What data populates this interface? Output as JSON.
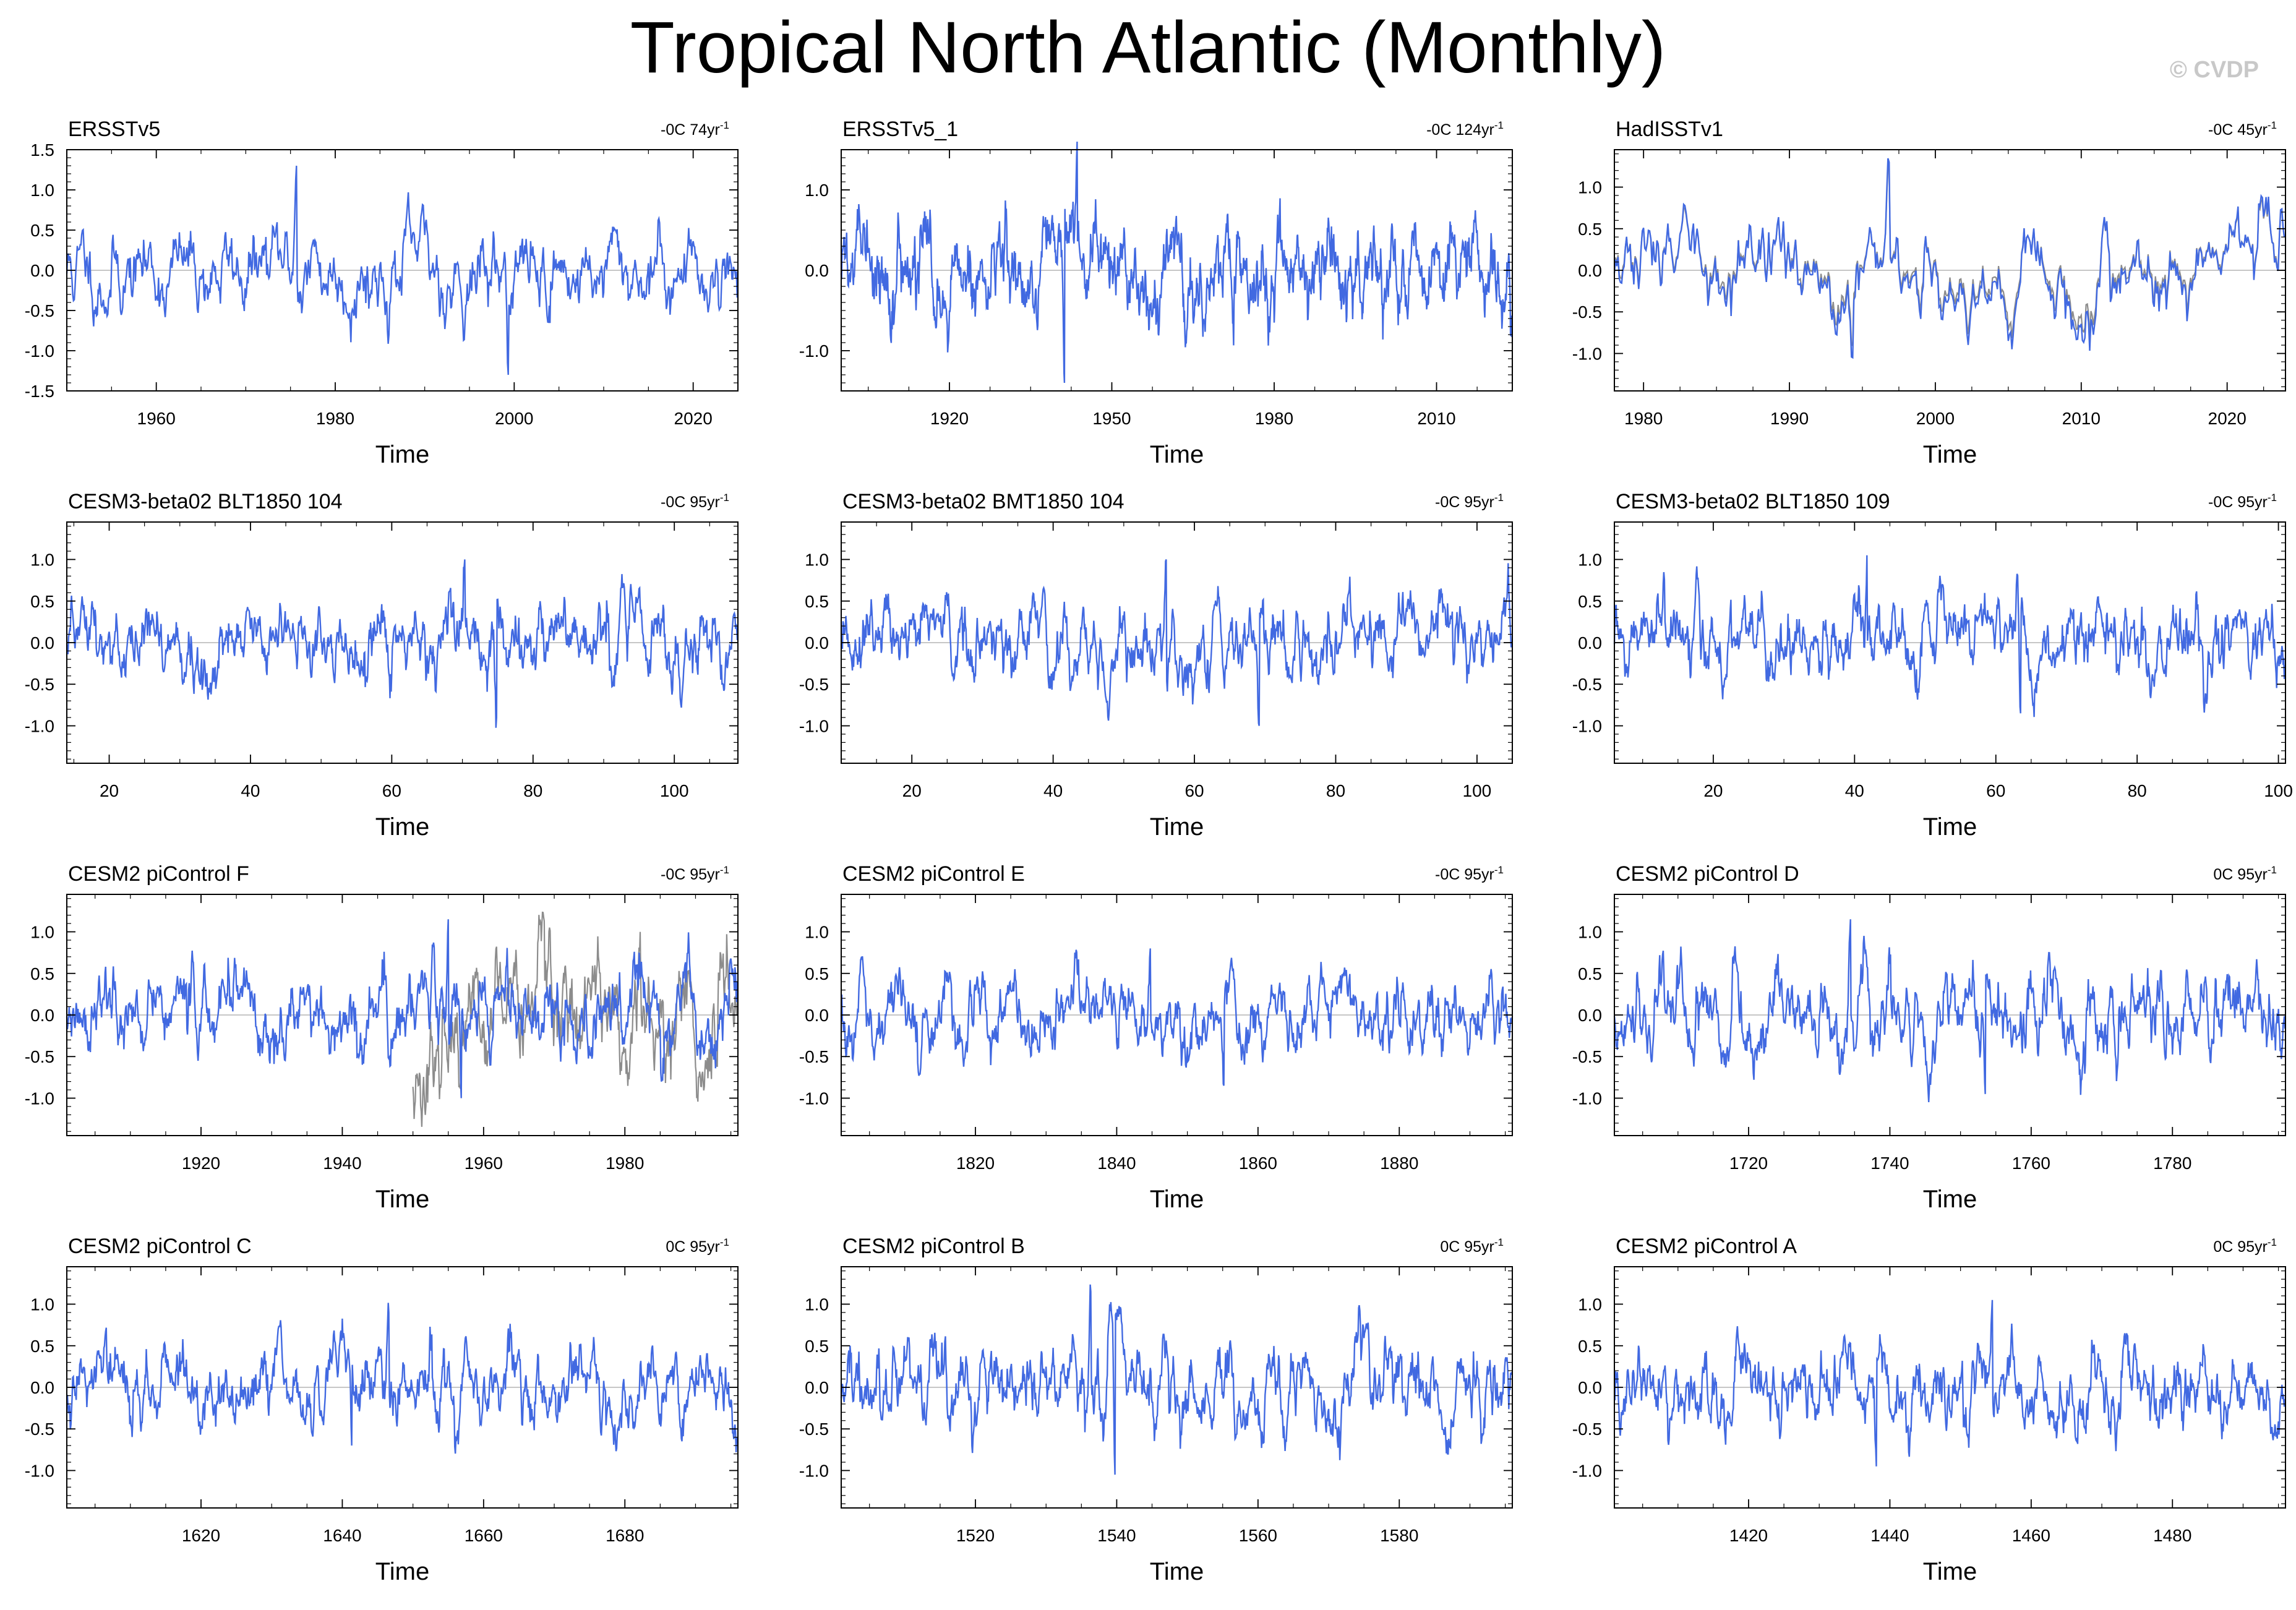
{
  "title": "Tropical North Atlantic (Monthly)",
  "credit": "© CVDP",
  "colors": {
    "primary": "#4169e1",
    "secondary": "#8c8c8c",
    "axis": "#000000",
    "zero_line": "#b4b4b4"
  },
  "chart_data": [
    {
      "type": "line",
      "title": "ERSSTv5",
      "trend": "-0C 74yr",
      "trend_exp": "-1",
      "xlabel": "Time",
      "xlim": [
        1950,
        2025
      ],
      "ylim": [
        -1.5,
        1.5
      ],
      "xticks": [
        1960,
        1980,
        2000,
        2020
      ],
      "xtick_labels": [
        "1960",
        "1980",
        "2000",
        "2020"
      ],
      "yticks": [
        -1.5,
        -1.0,
        -0.5,
        0.0,
        0.5,
        1.0,
        1.5
      ],
      "ytick_labels": [
        "-1.5",
        "-1.0",
        "-0.5",
        "0.0",
        "0.5",
        "1.0",
        "1.5"
      ],
      "series": [
        {
          "name": "ERSSTv5",
          "color": "#4169e1",
          "seed": 11,
          "std": 0.32,
          "peak": 1.3,
          "trough": -1.3
        }
      ]
    },
    {
      "type": "line",
      "title": "ERSSTv5_1",
      "trend": "-0C 124yr",
      "trend_exp": "-1",
      "xlabel": "Time",
      "xlim": [
        1900,
        2024
      ],
      "ylim": [
        -1.5,
        1.5
      ],
      "xticks": [
        1920,
        1950,
        1980,
        2010
      ],
      "xtick_labels": [
        "1920",
        "1950",
        "1980",
        "2010"
      ],
      "yticks": [
        -1.0,
        0.0,
        1.0
      ],
      "ytick_labels": [
        "-1.0",
        "0.0",
        "1.0"
      ],
      "series": [
        {
          "name": "ERSSTv5_1",
          "color": "#4169e1",
          "seed": 22,
          "std": 0.33,
          "peak": 1.6,
          "trough": -1.4
        }
      ]
    },
    {
      "type": "line",
      "title": "HadISSTv1",
      "trend": "-0C 45yr",
      "trend_exp": "-1",
      "xlabel": "Time",
      "xlim": [
        1978,
        2024
      ],
      "ylim": [
        -1.45,
        1.45
      ],
      "xticks": [
        1980,
        1990,
        2000,
        2010,
        2020
      ],
      "xtick_labels": [
        "1980",
        "1990",
        "2000",
        "2010",
        "2020"
      ],
      "yticks": [
        -1.0,
        -0.5,
        0.0,
        0.5,
        1.0
      ],
      "ytick_labels": [
        "-1.0",
        "-0.5",
        "0.0",
        "0.5",
        "1.0"
      ],
      "series": [
        {
          "name": "HadISSTv1",
          "color": "#4169e1",
          "seed": 33,
          "std": 0.33,
          "peak": 1.3,
          "trough": -1.05,
          "overlay": "#8c8c8c"
        }
      ]
    },
    {
      "type": "line",
      "title": "CESM3-beta02 BLT1850 104",
      "trend": "-0C 95yr",
      "trend_exp": "-1",
      "xlabel": "Time",
      "xlim": [
        14,
        109
      ],
      "ylim": [
        -1.45,
        1.45
      ],
      "xticks": [
        20,
        40,
        60,
        80,
        100
      ],
      "xtick_labels": [
        "20",
        "40",
        "60",
        "80",
        "100"
      ],
      "yticks": [
        -1.0,
        -0.5,
        0.0,
        0.5,
        1.0
      ],
      "ytick_labels": [
        "-1.0",
        "-0.5",
        "0.0",
        "0.5",
        "1.0"
      ],
      "series": [
        {
          "name": "BLT1850 104",
          "color": "#4169e1",
          "seed": 44,
          "std": 0.28,
          "peak": 1.0,
          "trough": -0.9
        }
      ]
    },
    {
      "type": "line",
      "title": "CESM3-beta02 BMT1850 104",
      "trend": "-0C 95yr",
      "trend_exp": "-1",
      "xlabel": "Time",
      "xlim": [
        10,
        105
      ],
      "ylim": [
        -1.45,
        1.45
      ],
      "xticks": [
        20,
        40,
        60,
        80,
        100
      ],
      "xtick_labels": [
        "20",
        "40",
        "60",
        "80",
        "100"
      ],
      "yticks": [
        -1.0,
        -0.5,
        0.0,
        0.5,
        1.0
      ],
      "ytick_labels": [
        "-1.0",
        "-0.5",
        "0.0",
        "0.5",
        "1.0"
      ],
      "series": [
        {
          "name": "BMT1850 104",
          "color": "#4169e1",
          "seed": 55,
          "std": 0.28,
          "peak": 1.0,
          "trough": -1.0
        }
      ]
    },
    {
      "type": "line",
      "title": "CESM3-beta02 BLT1850 109",
      "trend": "-0C 95yr",
      "trend_exp": "-1",
      "xlabel": "Time",
      "xlim": [
        6,
        101
      ],
      "ylim": [
        -1.45,
        1.45
      ],
      "xticks": [
        20,
        40,
        60,
        80,
        100
      ],
      "xtick_labels": [
        "20",
        "40",
        "60",
        "80",
        "100"
      ],
      "yticks": [
        -1.0,
        -0.5,
        0.0,
        0.5,
        1.0
      ],
      "ytick_labels": [
        "-1.0",
        "-0.5",
        "0.0",
        "0.5",
        "1.0"
      ],
      "series": [
        {
          "name": "BLT1850 109",
          "color": "#4169e1",
          "seed": 66,
          "std": 0.28,
          "peak": 1.05,
          "trough": -0.85
        }
      ]
    },
    {
      "type": "line",
      "title": "CESM2 piControl F",
      "trend": "-0C 95yr",
      "trend_exp": "-1",
      "xlabel": "Time",
      "xlim": [
        1901,
        1996
      ],
      "ylim": [
        -1.45,
        1.45
      ],
      "xticks": [
        1920,
        1940,
        1960,
        1980
      ],
      "xtick_labels": [
        "1920",
        "1940",
        "1960",
        "1980"
      ],
      "yticks": [
        -1.0,
        -0.5,
        0.0,
        0.5,
        1.0
      ],
      "ytick_labels": [
        "-1.0",
        "-0.5",
        "0.0",
        "0.5",
        "1.0"
      ],
      "series": [
        {
          "name": "piControl F",
          "color": "#4169e1",
          "seed": 77,
          "std": 0.3,
          "peak": 1.15,
          "trough": -1.0,
          "gray_from": 1950,
          "gray_std": 0.42
        }
      ]
    },
    {
      "type": "line",
      "title": "CESM2 piControl E",
      "trend": "-0C 95yr",
      "trend_exp": "-1",
      "xlabel": "Time",
      "xlim": [
        1801,
        1896
      ],
      "ylim": [
        -1.45,
        1.45
      ],
      "xticks": [
        1820,
        1840,
        1860,
        1880
      ],
      "xtick_labels": [
        "1820",
        "1840",
        "1860",
        "1880"
      ],
      "yticks": [
        -1.0,
        -0.5,
        0.0,
        0.5,
        1.0
      ],
      "ytick_labels": [
        "-1.0",
        "-0.5",
        "0.0",
        "0.5",
        "1.0"
      ],
      "series": [
        {
          "name": "piControl E",
          "color": "#4169e1",
          "seed": 88,
          "std": 0.27,
          "peak": 0.8,
          "trough": -0.85
        }
      ]
    },
    {
      "type": "line",
      "title": "CESM2 piControl D",
      "trend": "0C 95yr",
      "trend_exp": "-1",
      "xlabel": "Time",
      "xlim": [
        1701,
        1796
      ],
      "ylim": [
        -1.45,
        1.45
      ],
      "xticks": [
        1720,
        1740,
        1760,
        1780
      ],
      "xtick_labels": [
        "1720",
        "1740",
        "1760",
        "1780"
      ],
      "yticks": [
        -1.0,
        -0.5,
        0.0,
        0.5,
        1.0
      ],
      "ytick_labels": [
        "-1.0",
        "-0.5",
        "0.0",
        "0.5",
        "1.0"
      ],
      "series": [
        {
          "name": "piControl D",
          "color": "#4169e1",
          "seed": 99,
          "std": 0.3,
          "peak": 1.15,
          "trough": -0.95
        }
      ]
    },
    {
      "type": "line",
      "title": "CESM2 piControl C",
      "trend": "0C 95yr",
      "trend_exp": "-1",
      "xlabel": "Time",
      "xlim": [
        1601,
        1696
      ],
      "ylim": [
        -1.45,
        1.45
      ],
      "xticks": [
        1620,
        1640,
        1660,
        1680
      ],
      "xtick_labels": [
        "1620",
        "1640",
        "1660",
        "1680"
      ],
      "yticks": [
        -1.0,
        -0.5,
        0.0,
        0.5,
        1.0
      ],
      "ytick_labels": [
        "-1.0",
        "-0.5",
        "0.0",
        "0.5",
        "1.0"
      ],
      "series": [
        {
          "name": "piControl C",
          "color": "#4169e1",
          "seed": 111,
          "std": 0.28,
          "peak": 0.9,
          "trough": -0.7
        }
      ]
    },
    {
      "type": "line",
      "title": "CESM2 piControl B",
      "trend": "0C 95yr",
      "trend_exp": "-1",
      "xlabel": "Time",
      "xlim": [
        1501,
        1596
      ],
      "ylim": [
        -1.45,
        1.45
      ],
      "xticks": [
        1520,
        1540,
        1560,
        1580
      ],
      "xtick_labels": [
        "1520",
        "1540",
        "1560",
        "1580"
      ],
      "yticks": [
        -1.0,
        -0.5,
        0.0,
        0.5,
        1.0
      ],
      "ytick_labels": [
        "-1.0",
        "-0.5",
        "0.0",
        "0.5",
        "1.0"
      ],
      "series": [
        {
          "name": "piControl B",
          "color": "#4169e1",
          "seed": 122,
          "std": 0.3,
          "peak": 1.15,
          "trough": -1.05
        }
      ]
    },
    {
      "type": "line",
      "title": "CESM2 piControl A",
      "trend": "0C 95yr",
      "trend_exp": "-1",
      "xlabel": "Time",
      "xlim": [
        1401,
        1496
      ],
      "ylim": [
        -1.45,
        1.45
      ],
      "xticks": [
        1420,
        1440,
        1460,
        1480
      ],
      "xtick_labels": [
        "1420",
        "1440",
        "1460",
        "1480"
      ],
      "yticks": [
        -1.0,
        -0.5,
        0.0,
        0.5,
        1.0
      ],
      "ytick_labels": [
        "-1.0",
        "-0.5",
        "0.0",
        "0.5",
        "1.0"
      ],
      "series": [
        {
          "name": "piControl A",
          "color": "#4169e1",
          "seed": 133,
          "std": 0.28,
          "peak": 1.05,
          "trough": -0.95
        }
      ]
    }
  ]
}
